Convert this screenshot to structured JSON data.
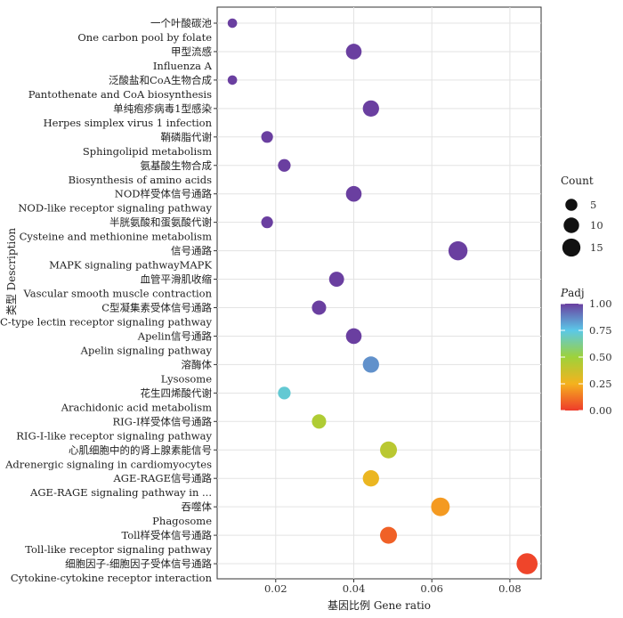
{
  "chart_data": {
    "type": "scatter",
    "xlabel": "基因比例 Gene ratio",
    "ylabel": "类型 Description",
    "xlim": [
      0.005,
      0.088
    ],
    "xticks": [
      "0.02",
      "0.04",
      "0.06",
      "0.08"
    ],
    "xtick_values": [
      0.02,
      0.04,
      0.06,
      0.08
    ],
    "grid": true,
    "legend_position": "right",
    "size_legend": {
      "title": "Count",
      "labels": [
        "5",
        "10",
        "15"
      ],
      "values": [
        5,
        10,
        15
      ]
    },
    "color_legend": {
      "title_prefix": "P",
      "title_suffix": "adj",
      "labels": [
        "1.00",
        "0.75",
        "0.50",
        "0.25",
        "0.00"
      ],
      "values": [
        1.0,
        0.75,
        0.5,
        0.25,
        0.0
      ],
      "colors": [
        "#6a3fa0",
        "#5bc8e8",
        "#9ed23a",
        "#f5b21e",
        "#ee3b2b"
      ]
    },
    "points": [
      {
        "zh": "一个叶酸碳池",
        "en": "One carbon pool by folate",
        "x": 0.0089,
        "count": 2,
        "padj": 1.0
      },
      {
        "zh": "甲型流感",
        "en": "Influenza A",
        "x": 0.04,
        "count": 9,
        "padj": 1.0
      },
      {
        "zh": "泛酸盐和CoA生物合成",
        "en": "Pantothenate and CoA biosynthesis",
        "x": 0.0089,
        "count": 2,
        "padj": 1.0
      },
      {
        "zh": "单纯疱疹病毒1型感染",
        "en": "Herpes simplex virus 1 infection",
        "x": 0.0444,
        "count": 10,
        "padj": 1.0
      },
      {
        "zh": "鞘磷脂代谢",
        "en": "Sphingolipid metabolism",
        "x": 0.0178,
        "count": 4,
        "padj": 1.0
      },
      {
        "zh": "氨基酸生物合成",
        "en": "Biosynthesis of amino acids",
        "x": 0.0222,
        "count": 5,
        "padj": 1.0
      },
      {
        "zh": "NOD样受体信号通路",
        "en": "NOD-like receptor signaling pathway",
        "x": 0.04,
        "count": 9,
        "padj": 1.0
      },
      {
        "zh": "半胱氨酸和蛋氨酸代谢",
        "en": "Cysteine and methionine metabolism",
        "x": 0.0178,
        "count": 4,
        "padj": 1.0
      },
      {
        "zh": "信号通路",
        "en": "MAPK signaling pathwayMAPK",
        "x": 0.0667,
        "count": 15,
        "padj": 1.0
      },
      {
        "zh": "血管平滑肌收缩",
        "en": "Vascular smooth muscle contraction",
        "x": 0.0356,
        "count": 8,
        "padj": 1.0
      },
      {
        "zh": "C型凝集素受体信号通路",
        "en": "C-type lectin receptor signaling pathway",
        "x": 0.0311,
        "count": 7,
        "padj": 1.0
      },
      {
        "zh": "Apelin信号通路",
        "en": "Apelin signaling pathway",
        "x": 0.04,
        "count": 9,
        "padj": 1.0
      },
      {
        "zh": "溶酶体",
        "en": "Lysosome",
        "x": 0.0444,
        "count": 10,
        "padj": 0.85
      },
      {
        "zh": "花生四烯酸代谢",
        "en": "Arachidonic acid metabolism",
        "x": 0.0222,
        "count": 5,
        "padj": 0.72
      },
      {
        "zh": "RIG-I样受体信号通路",
        "en": "RIG-I-like receptor signaling pathway",
        "x": 0.0311,
        "count": 7,
        "padj": 0.45
      },
      {
        "zh": "心肌细胞中的的肾上腺素能信号",
        "en": "Adrenergic signaling in cardiomyocytes",
        "x": 0.0489,
        "count": 11,
        "padj": 0.42
      },
      {
        "zh": "AGE-RAGE信号通路",
        "en": "AGE-RAGE signaling pathway in ...",
        "x": 0.0444,
        "count": 10,
        "padj": 0.28
      },
      {
        "zh": "吞噬体",
        "en": "Phagosome",
        "x": 0.0622,
        "count": 14,
        "padj": 0.2
      },
      {
        "zh": "Toll样受体信号通路",
        "en": "Toll-like receptor signaling pathway",
        "x": 0.0489,
        "count": 11,
        "padj": 0.08
      },
      {
        "zh": "细胞因子-细胞因子受体信号通路",
        "en": "Cytokine-cytokine receptor interaction",
        "x": 0.0844,
        "count": 19,
        "padj": 0.02
      }
    ]
  }
}
